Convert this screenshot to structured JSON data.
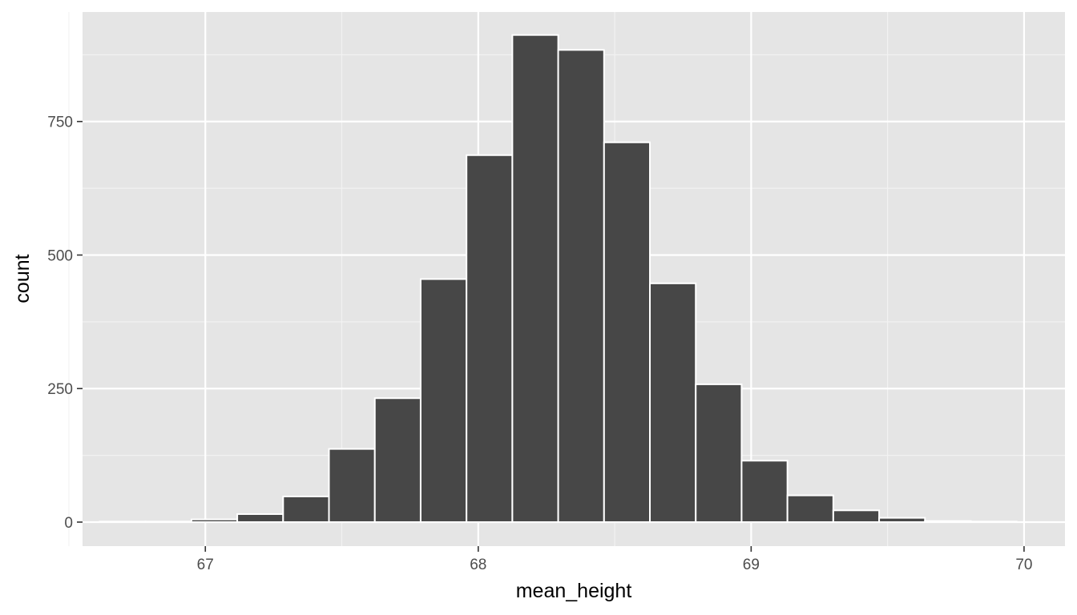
{
  "chart_data": {
    "type": "bar",
    "subtype": "histogram",
    "xlabel": "mean_height",
    "ylabel": "count",
    "xlim": [
      66.55,
      70.15
    ],
    "ylim": [
      -45,
      955
    ],
    "x_ticks": [
      67,
      68,
      69,
      70
    ],
    "x_tick_labels": [
      "67",
      "68",
      "69",
      "70"
    ],
    "y_ticks": [
      0,
      250,
      500,
      750
    ],
    "y_tick_labels": [
      "0",
      "250",
      "500",
      "750"
    ],
    "x_minor_ticks": [
      66.5,
      67.5,
      68.5,
      69.5
    ],
    "y_minor_ticks": [
      125,
      375,
      625,
      875
    ],
    "bin_width": 0.168,
    "bins": [
      {
        "x_start": 66.613,
        "x_end": 66.781,
        "count": 1
      },
      {
        "x_start": 66.781,
        "x_end": 66.949,
        "count": 1
      },
      {
        "x_start": 66.949,
        "x_end": 67.117,
        "count": 5
      },
      {
        "x_start": 67.117,
        "x_end": 67.285,
        "count": 15
      },
      {
        "x_start": 67.285,
        "x_end": 67.453,
        "count": 48
      },
      {
        "x_start": 67.453,
        "x_end": 67.621,
        "count": 137
      },
      {
        "x_start": 67.621,
        "x_end": 67.789,
        "count": 232
      },
      {
        "x_start": 67.789,
        "x_end": 67.957,
        "count": 455
      },
      {
        "x_start": 67.957,
        "x_end": 68.125,
        "count": 687
      },
      {
        "x_start": 68.125,
        "x_end": 68.293,
        "count": 912
      },
      {
        "x_start": 68.293,
        "x_end": 68.461,
        "count": 884
      },
      {
        "x_start": 68.461,
        "x_end": 68.629,
        "count": 711
      },
      {
        "x_start": 68.629,
        "x_end": 68.797,
        "count": 447
      },
      {
        "x_start": 68.797,
        "x_end": 68.965,
        "count": 258
      },
      {
        "x_start": 68.965,
        "x_end": 69.133,
        "count": 115
      },
      {
        "x_start": 69.133,
        "x_end": 69.301,
        "count": 50
      },
      {
        "x_start": 69.301,
        "x_end": 69.469,
        "count": 22
      },
      {
        "x_start": 69.469,
        "x_end": 69.637,
        "count": 8
      },
      {
        "x_start": 69.637,
        "x_end": 69.805,
        "count": 2
      },
      {
        "x_start": 69.805,
        "x_end": 69.973,
        "count": 1
      }
    ],
    "grid": true,
    "legend": "none",
    "colors": {
      "bar_fill": "#474747",
      "bar_outline": "#ffffff",
      "panel_background": "#e5e5e5",
      "grid_major": "#ffffff",
      "grid_minor": "#f2f2f2",
      "tick_text": "#4d4d4d",
      "tick_mark": "#333333",
      "axis_title": "#000000"
    }
  }
}
